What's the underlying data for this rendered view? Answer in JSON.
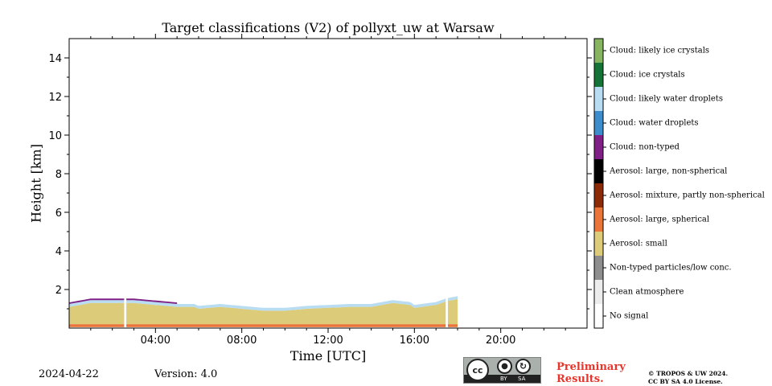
{
  "chart_data": {
    "type": "heatmap",
    "title": "Target classifications (V2) of pollyxt_uw at Warsaw",
    "xlabel": "Time [UTC]",
    "ylabel": "Height [km]",
    "xlim_hours": [
      0,
      24
    ],
    "ylim_km": [
      0,
      15
    ],
    "x_ticks": [
      {
        "hour": 4,
        "label": "04:00"
      },
      {
        "hour": 8,
        "label": "08:00"
      },
      {
        "hour": 12,
        "label": "12:00"
      },
      {
        "hour": 16,
        "label": "16:00"
      },
      {
        "hour": 20,
        "label": "20:00"
      }
    ],
    "y_ticks": [
      {
        "km": 2,
        "label": "2"
      },
      {
        "km": 4,
        "label": "4"
      },
      {
        "km": 6,
        "label": "6"
      },
      {
        "km": 8,
        "label": "8"
      },
      {
        "km": 10,
        "label": "10"
      },
      {
        "km": 12,
        "label": "12"
      },
      {
        "km": 14,
        "label": "14"
      }
    ],
    "data_end_hour": 18.0,
    "data_gaps_hours": [
      [
        2.55,
        2.65
      ],
      [
        17.45,
        17.55
      ]
    ],
    "classes": [
      {
        "label": "No signal",
        "color": "#ffffff"
      },
      {
        "label": "Clean atmosphere",
        "color": "#ececec"
      },
      {
        "label": "Non-typed particles/low conc.",
        "color": "#8e8e8e"
      },
      {
        "label": "Aerosol: small",
        "color": "#dccb78"
      },
      {
        "label": "Aerosol: large, spherical",
        "color": "#e9753a"
      },
      {
        "label": "Aerosol: mixture, partly non-spherical",
        "color": "#8b2a07"
      },
      {
        "label": "Aerosol: large, non-spherical",
        "color": "#000000"
      },
      {
        "label": "Cloud: non-typed",
        "color": "#7e2085"
      },
      {
        "label": "Cloud: water droplets",
        "color": "#3d8ccc"
      },
      {
        "label": "Cloud: likely water droplets",
        "color": "#b8dcf2"
      },
      {
        "label": "Cloud: ice crystals",
        "color": "#167338"
      },
      {
        "label": "Cloud: likely ice crystals",
        "color": "#86b460"
      }
    ],
    "layers": [
      {
        "class": "Aerosol: large, spherical",
        "bottom_km": 0.05,
        "top_km": 0.2
      },
      {
        "class": "Aerosol: small",
        "bottom_km": 0.2,
        "top_km_profile": {
          "hours": [
            0,
            0.5,
            1,
            2,
            3,
            4,
            5,
            5.8,
            6,
            7,
            8,
            9,
            10,
            11,
            12,
            13,
            14,
            15,
            15.8,
            16,
            17,
            17.5,
            18
          ],
          "top_km": [
            1.1,
            1.2,
            1.3,
            1.3,
            1.3,
            1.2,
            1.1,
            1.1,
            1.0,
            1.1,
            1.0,
            0.9,
            0.9,
            1.0,
            1.05,
            1.1,
            1.1,
            1.3,
            1.2,
            1.05,
            1.2,
            1.4,
            1.5
          ]
        }
      },
      {
        "class": "Cloud: likely water droplets",
        "thickness_km": 0.15
      },
      {
        "class": "Cloud: non-typed",
        "hours": [
          0,
          5
        ],
        "thickness_km": 0.08
      }
    ]
  },
  "footer": {
    "date": "2024-04-22",
    "version": "Version: 4.0",
    "license_badge": {
      "by": "BY",
      "sa": "SA"
    },
    "preliminary_line1": "Preliminary",
    "preliminary_line2": "Results.",
    "copyright_line1": "© TROPOS & UW 2024.",
    "copyright_line2": "CC BY SA 4.0 License."
  }
}
